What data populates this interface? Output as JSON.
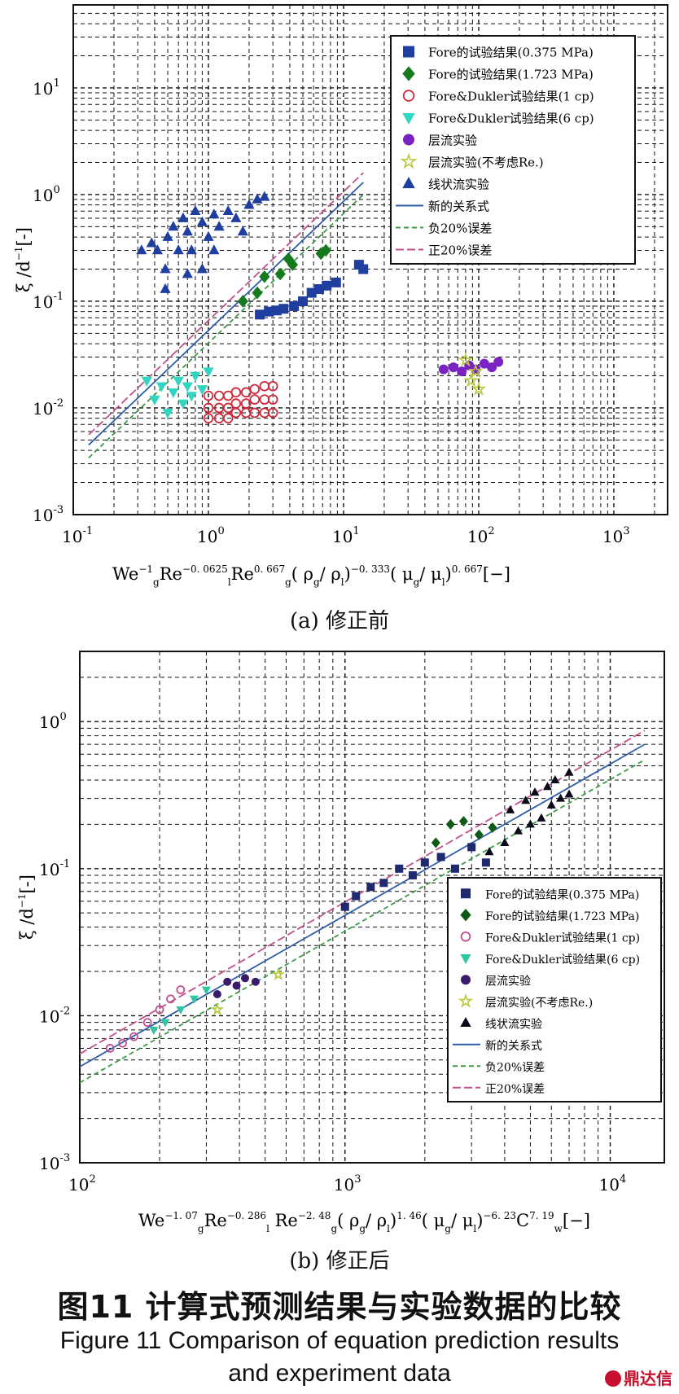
{
  "chart_data": [
    {
      "id": "a",
      "type": "scatter",
      "log_x": true,
      "log_y": true,
      "xlim": [
        0.1,
        2500
      ],
      "ylim": [
        0.001,
        60
      ],
      "x_ticks": [
        {
          "v": 0.1,
          "b": "10",
          "e": "-1"
        },
        {
          "v": 1,
          "b": "10",
          "e": "0"
        },
        {
          "v": 10,
          "b": "10",
          "e": "1"
        },
        {
          "v": 100,
          "b": "10",
          "e": "2"
        },
        {
          "v": 1000,
          "b": "10",
          "e": "3"
        }
      ],
      "y_ticks": [
        {
          "v": 0.001,
          "b": "10",
          "e": "-3"
        },
        {
          "v": 0.01,
          "b": "10",
          "e": "-2"
        },
        {
          "v": 0.1,
          "b": "10",
          "e": "-1"
        },
        {
          "v": 1,
          "b": "10",
          "e": "0"
        },
        {
          "v": 10,
          "b": "10",
          "e": "1"
        }
      ],
      "ylabel": [
        {
          "t": "ξ /d"
        },
        {
          "t": "−1",
          "s": "sup"
        },
        {
          "t": "[-]"
        }
      ],
      "xlabel": [
        {
          "t": "We"
        },
        {
          "t": "−1",
          "s": "sup"
        },
        {
          "t": "g",
          "s": "sub"
        },
        {
          "t": "Re"
        },
        {
          "t": "−0. 0625",
          "s": "sup"
        },
        {
          "t": "l",
          "s": "sub"
        },
        {
          "t": "Re"
        },
        {
          "t": "0. 667",
          "s": "sup"
        },
        {
          "t": "g",
          "s": "sub"
        },
        {
          "t": "( ρ"
        },
        {
          "t": "g",
          "s": "sub"
        },
        {
          "t": "/ ρ"
        },
        {
          "t": "l",
          "s": "sub"
        },
        {
          "t": ")"
        },
        {
          "t": "−0. 333",
          "s": "sup"
        },
        {
          "t": "( μ"
        },
        {
          "t": "g",
          "s": "sub"
        },
        {
          "t": "/ μ"
        },
        {
          "t": "l",
          "s": "sub"
        },
        {
          "t": ")"
        },
        {
          "t": "0. 667",
          "s": "sup"
        },
        {
          "t": "[−]"
        }
      ],
      "lines": [
        {
          "name": "新的关系式",
          "color": "#2e5ea8",
          "dash": "",
          "pts": [
            [
              0.13,
              0.0045
            ],
            [
              14,
              1.3
            ]
          ]
        },
        {
          "name": "负20%误差",
          "color": "#3d9a46",
          "dash": "6,4",
          "pts": [
            [
              0.13,
              0.0034
            ],
            [
              14,
              1.0
            ]
          ]
        },
        {
          "name": "正20%误差",
          "color": "#c2508c",
          "dash": "10,4",
          "pts": [
            [
              0.13,
              0.0056
            ],
            [
              14,
              1.6
            ]
          ]
        }
      ],
      "series": [
        {
          "name": "Fore的试验结果(0.375 MPa)",
          "marker": "square",
          "color": "#1f3fa0",
          "pts": [
            [
              2.4,
              0.075
            ],
            [
              2.8,
              0.08
            ],
            [
              3.2,
              0.082
            ],
            [
              3.6,
              0.085
            ],
            [
              4.3,
              0.09
            ],
            [
              5,
              0.1
            ],
            [
              5.8,
              0.12
            ],
            [
              6.6,
              0.13
            ],
            [
              7.5,
              0.14
            ],
            [
              8.8,
              0.15
            ],
            [
              13,
              0.22
            ],
            [
              14,
              0.2
            ]
          ]
        },
        {
          "name": "Fore的试验结果(1.723 MPa)",
          "marker": "diamond",
          "color": "#157a1e",
          "pts": [
            [
              1.8,
              0.1
            ],
            [
              2.3,
              0.12
            ],
            [
              2.6,
              0.17
            ],
            [
              3.4,
              0.18
            ],
            [
              3.9,
              0.25
            ],
            [
              4.2,
              0.22
            ],
            [
              6.8,
              0.28
            ],
            [
              7.4,
              0.3
            ]
          ]
        },
        {
          "name": "Fore&Dukler试验结果(1 cp)",
          "marker": "circle-open",
          "color": "#d0283a",
          "pts": [
            [
              1,
              0.013
            ],
            [
              1,
              0.01
            ],
            [
              1,
              0.008
            ],
            [
              1.2,
              0.013
            ],
            [
              1.2,
              0.01
            ],
            [
              1.2,
              0.008
            ],
            [
              1.4,
              0.013
            ],
            [
              1.4,
              0.01
            ],
            [
              1.4,
              0.008
            ],
            [
              1.6,
              0.014
            ],
            [
              1.6,
              0.011
            ],
            [
              1.6,
              0.009
            ],
            [
              1.9,
              0.014
            ],
            [
              1.9,
              0.011
            ],
            [
              1.9,
              0.009
            ],
            [
              2.2,
              0.015
            ],
            [
              2.2,
              0.012
            ],
            [
              2.2,
              0.009
            ],
            [
              2.6,
              0.016
            ],
            [
              2.6,
              0.012
            ],
            [
              2.6,
              0.009
            ],
            [
              3,
              0.016
            ],
            [
              3,
              0.012
            ],
            [
              3,
              0.009
            ]
          ]
        },
        {
          "name": "Fore&Dukler试验结果(6 cp)",
          "marker": "triangle-down",
          "color": "#30d6c0",
          "pts": [
            [
              0.35,
              0.018
            ],
            [
              0.4,
              0.012
            ],
            [
              0.45,
              0.016
            ],
            [
              0.5,
              0.009
            ],
            [
              0.55,
              0.014
            ],
            [
              0.6,
              0.018
            ],
            [
              0.65,
              0.011
            ],
            [
              0.7,
              0.016
            ],
            [
              0.75,
              0.013
            ],
            [
              0.8,
              0.02
            ],
            [
              0.9,
              0.015
            ],
            [
              1,
              0.022
            ]
          ]
        },
        {
          "name": "层流实验",
          "marker": "circle",
          "color": "#7a22c2",
          "pts": [
            [
              55,
              0.023
            ],
            [
              65,
              0.024
            ],
            [
              75,
              0.022
            ],
            [
              85,
              0.025
            ],
            [
              95,
              0.023
            ],
            [
              110,
              0.026
            ],
            [
              125,
              0.024
            ],
            [
              140,
              0.027
            ]
          ]
        },
        {
          "name": "层流实验(不考虑Re.)",
          "marker": "star",
          "color": "#b9c93a",
          "pts": [
            [
              80,
              0.028
            ],
            [
              88,
              0.018
            ],
            [
              95,
              0.022
            ],
            [
              100,
              0.015
            ]
          ]
        },
        {
          "name": "线状流实验",
          "marker": "triangle-up",
          "color": "#1f3fa0",
          "pts": [
            [
              0.32,
              0.3
            ],
            [
              0.38,
              0.35
            ],
            [
              0.42,
              0.3
            ],
            [
              0.48,
              0.2
            ],
            [
              0.5,
              0.4
            ],
            [
              0.55,
              0.5
            ],
            [
              0.6,
              0.3
            ],
            [
              0.65,
              0.6
            ],
            [
              0.7,
              0.45
            ],
            [
              0.75,
              0.3
            ],
            [
              0.8,
              0.7
            ],
            [
              0.9,
              0.55
            ],
            [
              1,
              0.4
            ],
            [
              1.1,
              0.65
            ],
            [
              1.2,
              0.5
            ],
            [
              1.4,
              0.7
            ],
            [
              1.6,
              0.6
            ],
            [
              1.8,
              0.45
            ],
            [
              2,
              0.8
            ],
            [
              2.3,
              0.9
            ],
            [
              2.6,
              0.95
            ],
            [
              0.48,
              0.13
            ],
            [
              0.7,
              0.18
            ],
            [
              0.9,
              0.2
            ],
            [
              1.1,
              0.3
            ]
          ]
        }
      ],
      "legend": {
        "position": "top-right"
      }
    },
    {
      "id": "b",
      "type": "scatter",
      "log_x": true,
      "log_y": true,
      "xlim": [
        100,
        16000
      ],
      "ylim": [
        0.001,
        3
      ],
      "x_ticks": [
        {
          "v": 100,
          "b": "10",
          "e": "2"
        },
        {
          "v": 1000,
          "b": "10",
          "e": "3"
        },
        {
          "v": 10000,
          "b": "10",
          "e": "4"
        }
      ],
      "y_ticks": [
        {
          "v": 0.001,
          "b": "10",
          "e": "-3"
        },
        {
          "v": 0.01,
          "b": "10",
          "e": "-2"
        },
        {
          "v": 0.1,
          "b": "10",
          "e": "-1"
        },
        {
          "v": 1,
          "b": "10",
          "e": "0"
        }
      ],
      "ylabel": [
        {
          "t": "ξ /d"
        },
        {
          "t": "−1",
          "s": "sup"
        },
        {
          "t": "[-]"
        }
      ],
      "xlabel": [
        {
          "t": "We"
        },
        {
          "t": "−1. 07",
          "s": "sup"
        },
        {
          "t": "g",
          "s": "sub"
        },
        {
          "t": "Re"
        },
        {
          "t": "−0. 286",
          "s": "sup"
        },
        {
          "t": "l",
          "s": "sub"
        },
        {
          "t": " Re"
        },
        {
          "t": "−2. 48",
          "s": "sup"
        },
        {
          "t": "g",
          "s": "sub"
        },
        {
          "t": "( ρ"
        },
        {
          "t": "g",
          "s": "sub"
        },
        {
          "t": "/ ρ"
        },
        {
          "t": "l",
          "s": "sub"
        },
        {
          "t": ")"
        },
        {
          "t": "1. 46",
          "s": "sup"
        },
        {
          "t": "( μ"
        },
        {
          "t": "g",
          "s": "sub"
        },
        {
          "t": "/ μ"
        },
        {
          "t": "l",
          "s": "sub"
        },
        {
          "t": ")"
        },
        {
          "t": "−6. 23",
          "s": "sup"
        },
        {
          "t": "C"
        },
        {
          "t": "7. 19",
          "s": "sup"
        },
        {
          "t": "w",
          "s": "sub"
        },
        {
          "t": "[−]"
        }
      ],
      "lines": [
        {
          "name": "新的关系式",
          "color": "#2e5ea8",
          "dash": "",
          "pts": [
            [
              100,
              0.0045
            ],
            [
              13500,
              0.7
            ]
          ]
        },
        {
          "name": "负20%误差",
          "color": "#3d9a46",
          "dash": "6,4",
          "pts": [
            [
              100,
              0.0035
            ],
            [
              13500,
              0.55
            ]
          ]
        },
        {
          "name": "正20%误差",
          "color": "#c2508c",
          "dash": "10,4",
          "pts": [
            [
              100,
              0.0055
            ],
            [
              13500,
              0.87
            ]
          ]
        }
      ],
      "series": [
        {
          "name": "Fore的试验结果(0.375 MPa)",
          "marker": "square",
          "color": "#1f2a6e",
          "pts": [
            [
              1000,
              0.055
            ],
            [
              1100,
              0.065
            ],
            [
              1250,
              0.075
            ],
            [
              1400,
              0.08
            ],
            [
              1600,
              0.1
            ],
            [
              1800,
              0.09
            ],
            [
              2000,
              0.11
            ],
            [
              2300,
              0.12
            ],
            [
              2600,
              0.1
            ],
            [
              3000,
              0.14
            ],
            [
              3400,
              0.11
            ]
          ]
        },
        {
          "name": "Fore的试验结果(1.723 MPa)",
          "marker": "diamond",
          "color": "#0f5a14",
          "pts": [
            [
              2200,
              0.15
            ],
            [
              2500,
              0.2
            ],
            [
              2800,
              0.21
            ],
            [
              3200,
              0.17
            ],
            [
              3600,
              0.19
            ]
          ]
        },
        {
          "name": "Fore&Dukler试验结果(1 cp)",
          "marker": "circle-open",
          "color": "#c05090",
          "pts": [
            [
              130,
              0.006
            ],
            [
              145,
              0.0065
            ],
            [
              160,
              0.0072
            ],
            [
              180,
              0.009
            ],
            [
              200,
              0.011
            ],
            [
              220,
              0.013
            ],
            [
              240,
              0.015
            ]
          ]
        },
        {
          "name": "Fore&Dukler试验结果(6 cp)",
          "marker": "triangle-down",
          "color": "#30c6a0",
          "pts": [
            [
              190,
              0.008
            ],
            [
              210,
              0.009
            ],
            [
              240,
              0.011
            ],
            [
              270,
              0.013
            ],
            [
              300,
              0.015
            ]
          ]
        },
        {
          "name": "层流实验",
          "marker": "circle",
          "color": "#3a1a6a",
          "pts": [
            [
              330,
              0.014
            ],
            [
              360,
              0.017
            ],
            [
              390,
              0.016
            ],
            [
              420,
              0.018
            ],
            [
              460,
              0.017
            ]
          ]
        },
        {
          "name": "层流实验(不考虑Re.)",
          "marker": "star",
          "color": "#b9c93a",
          "pts": [
            [
              330,
              0.011
            ],
            [
              560,
              0.019
            ]
          ]
        },
        {
          "name": "线状流实验",
          "marker": "triangle-up",
          "color": "#0a0a1a",
          "pts": [
            [
              3500,
              0.13
            ],
            [
              4000,
              0.15
            ],
            [
              4500,
              0.18
            ],
            [
              5000,
              0.2
            ],
            [
              5500,
              0.22
            ],
            [
              6000,
              0.27
            ],
            [
              6500,
              0.3
            ],
            [
              7000,
              0.32
            ],
            [
              4200,
              0.25
            ],
            [
              5200,
              0.33
            ],
            [
              6200,
              0.4
            ],
            [
              7000,
              0.45
            ],
            [
              4800,
              0.29
            ],
            [
              5800,
              0.36
            ]
          ]
        }
      ],
      "legend": {
        "position": "bottom-right"
      }
    }
  ],
  "captions": {
    "a": "(a)  修正前",
    "b": "(b)  修正后",
    "figure_zh": "图11    计算式预测结果与实验数据的比较",
    "figure_en_1": "Figure 11    Comparison of equation prediction results",
    "figure_en_2": "and experiment data",
    "watermark": "鼎达信"
  }
}
